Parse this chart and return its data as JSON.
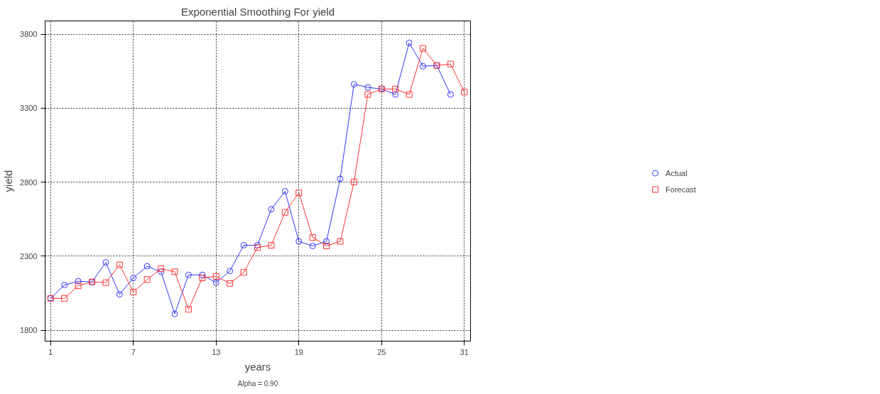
{
  "chart_data": {
    "type": "line",
    "title": "Exponential Smoothing For yield",
    "xlabel": "years",
    "ylabel": "yield",
    "annotations": [
      "Alpha = 0.90"
    ],
    "xlim": [
      0.6,
      31.45
    ],
    "xticks": [
      1,
      7,
      13,
      19,
      25,
      31
    ],
    "ylim": [
      1726,
      3890
    ],
    "yticks": [
      1800,
      2300,
      2800,
      3300,
      3800
    ],
    "grid": true,
    "legend": "right",
    "line_style": "solid",
    "series": [
      {
        "name": "Actual",
        "color": "#3333ff",
        "marker": "circle",
        "x": [
          1,
          2,
          3,
          4,
          5,
          6,
          7,
          8,
          9,
          10,
          11,
          12,
          13,
          14,
          15,
          16,
          17,
          18,
          19,
          20,
          21,
          22,
          23,
          24,
          25,
          26,
          27,
          28,
          29,
          30
        ],
        "values": [
          2015,
          2105,
          2131,
          2126,
          2258,
          2042,
          2153,
          2232,
          2195,
          1910,
          2174,
          2174,
          2121,
          2200,
          2374,
          2374,
          2617,
          2739,
          2400,
          2369,
          2400,
          2823,
          3462,
          3441,
          3430,
          3393,
          3742,
          3584,
          3589,
          3393
        ]
      },
      {
        "name": "Forecast",
        "color": "#ff3333",
        "marker": "square",
        "x": [
          1,
          2,
          3,
          4,
          5,
          6,
          7,
          8,
          9,
          10,
          11,
          12,
          13,
          14,
          15,
          16,
          17,
          18,
          19,
          20,
          21,
          22,
          23,
          24,
          25,
          26,
          27,
          28,
          29,
          30,
          31
        ],
        "values": [
          2015,
          2015,
          2100,
          2126,
          2121,
          2242,
          2058,
          2142,
          2216,
          2195,
          1941,
          2153,
          2163,
          2116,
          2190,
          2358,
          2374,
          2596,
          2728,
          2427,
          2369,
          2400,
          2802,
          3393,
          3430,
          3430,
          3393,
          3705,
          3589,
          3599,
          3409
        ]
      }
    ]
  }
}
